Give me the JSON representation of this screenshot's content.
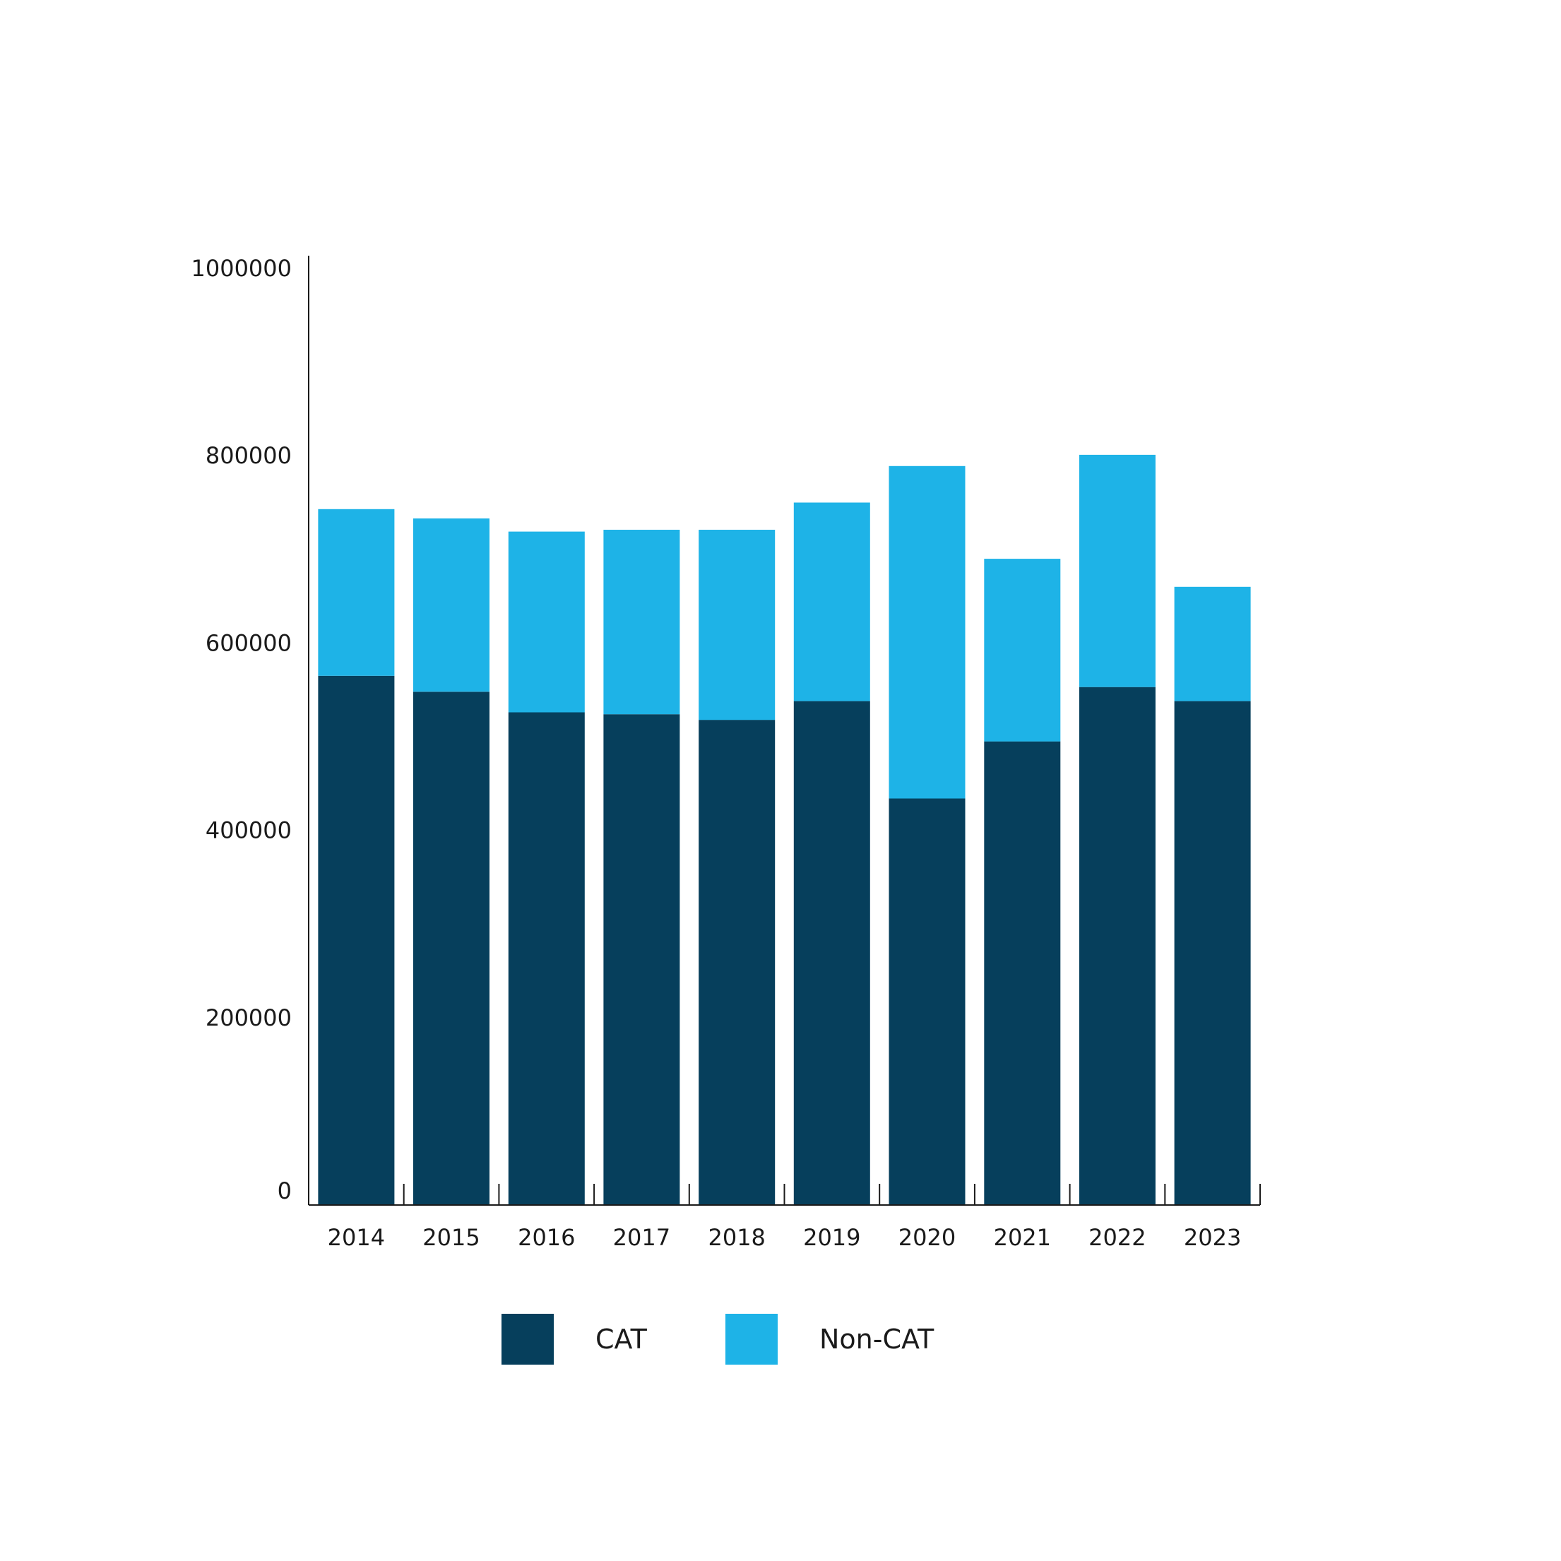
{
  "chart_data": {
    "type": "bar",
    "stacked": true,
    "categories": [
      "2014",
      "2015",
      "2016",
      "2017",
      "2018",
      "2019",
      "2020",
      "2021",
      "2022",
      "2023"
    ],
    "series": [
      {
        "name": "CAT",
        "color": "#063f5c",
        "values": [
          565000,
          548000,
          526000,
          524000,
          518000,
          538000,
          434000,
          495000,
          553000,
          538000
        ]
      },
      {
        "name": "Non-CAT",
        "color": "#1eb3e7",
        "values": [
          178000,
          185000,
          193000,
          197000,
          203000,
          212000,
          355000,
          195000,
          248000,
          122000
        ]
      }
    ],
    "y_ticks": [
      "0",
      "200000",
      "400000",
      "600000",
      "800000",
      "1000000"
    ],
    "y_tick_values": [
      0,
      200000,
      400000,
      600000,
      800000,
      1000000
    ],
    "ylim": [
      0,
      1000000
    ],
    "grid": false,
    "legend_position": "bottom"
  }
}
